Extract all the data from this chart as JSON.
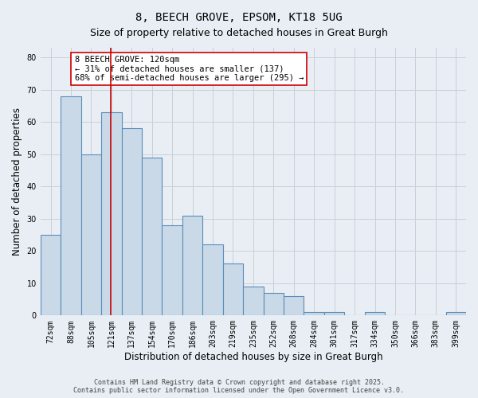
{
  "title": "8, BEECH GROVE, EPSOM, KT18 5UG",
  "subtitle": "Size of property relative to detached houses in Great Burgh",
  "xlabel": "Distribution of detached houses by size in Great Burgh",
  "ylabel": "Number of detached properties",
  "bin_labels": [
    "72sqm",
    "88sqm",
    "105sqm",
    "121sqm",
    "137sqm",
    "154sqm",
    "170sqm",
    "186sqm",
    "203sqm",
    "219sqm",
    "235sqm",
    "252sqm",
    "268sqm",
    "284sqm",
    "301sqm",
    "317sqm",
    "334sqm",
    "350sqm",
    "366sqm",
    "383sqm",
    "399sqm"
  ],
  "bar_heights": [
    25,
    68,
    50,
    63,
    58,
    49,
    28,
    31,
    22,
    16,
    9,
    7,
    6,
    1,
    1,
    0,
    1,
    0,
    0,
    0,
    1
  ],
  "bar_color": "#c9d9e8",
  "bar_edge_color": "#5b8db8",
  "vline_pos": 2.97,
  "vline_color": "#cc0000",
  "annotation_text": "8 BEECH GROVE: 120sqm\n← 31% of detached houses are smaller (137)\n68% of semi-detached houses are larger (295) →",
  "annotation_box_color": "#ffffff",
  "annotation_box_edge": "#cc0000",
  "grid_color": "#c8d0d8",
  "bg_color": "#e8eef4",
  "plot_bg_color": "#e8eef4",
  "ylim": [
    0,
    83
  ],
  "yticks": [
    0,
    10,
    20,
    30,
    40,
    50,
    60,
    70,
    80
  ],
  "title_fontsize": 10,
  "subtitle_fontsize": 9,
  "axis_label_fontsize": 8.5,
  "tick_fontsize": 7,
  "annotation_fontsize": 7.5,
  "footer_fontsize": 6,
  "footer": "Contains HM Land Registry data © Crown copyright and database right 2025.\nContains public sector information licensed under the Open Government Licence v3.0."
}
